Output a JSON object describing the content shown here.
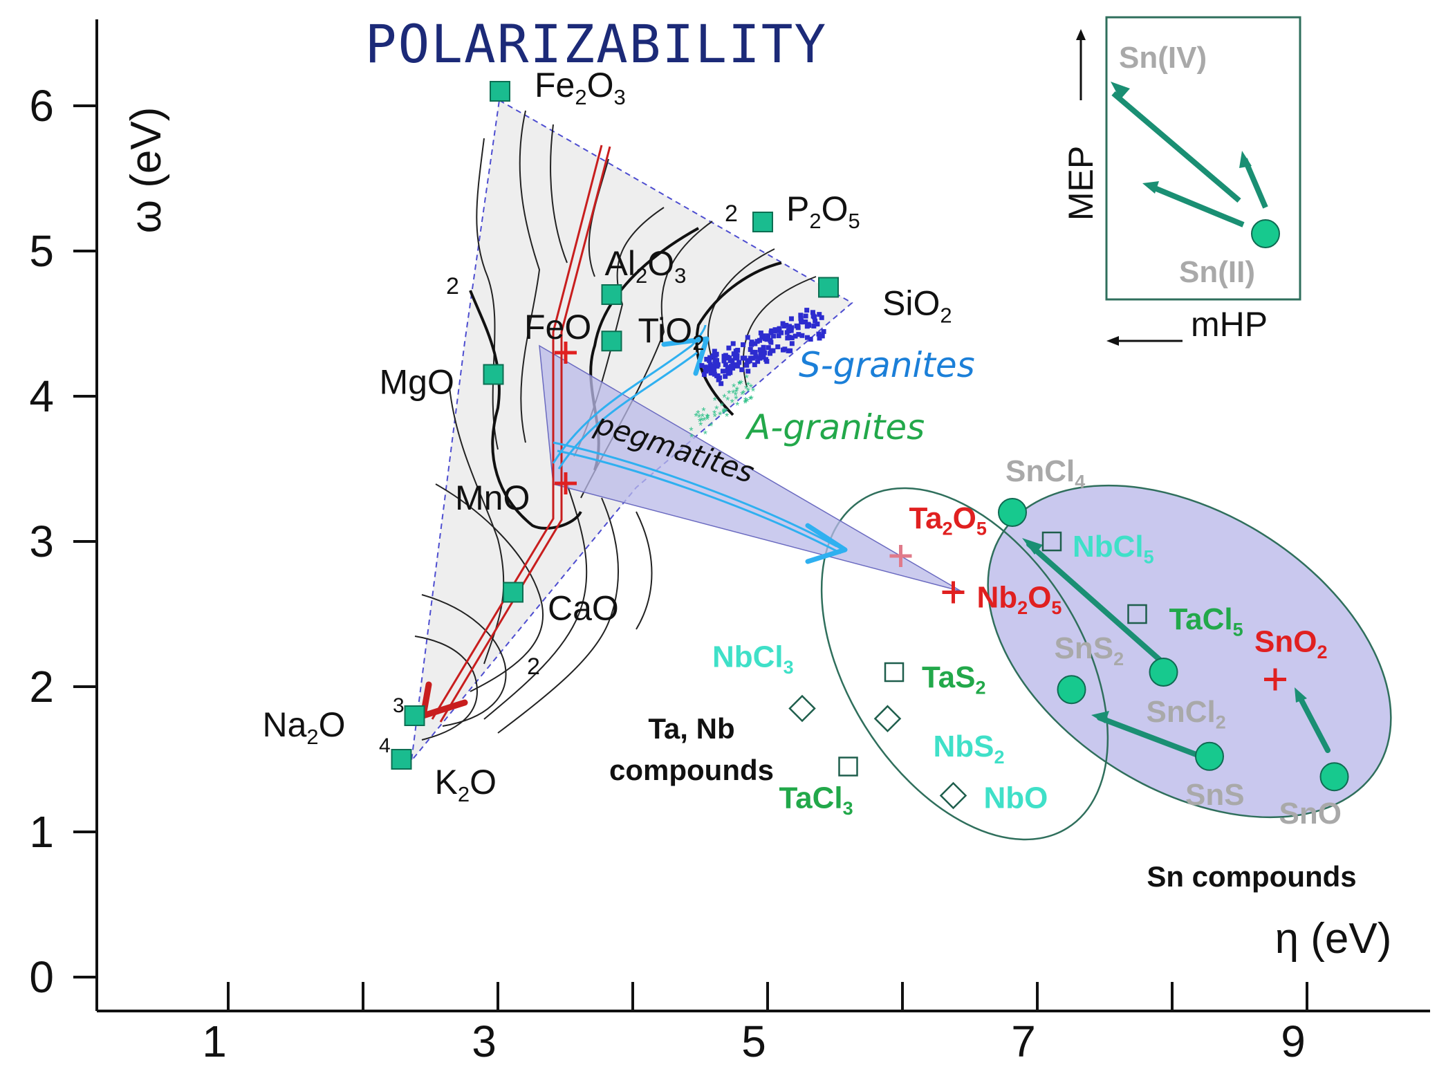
{
  "chart_data": {
    "type": "scatter",
    "title": "POLARIZABILITY",
    "xlabel": "η (eV)",
    "ylabel": "ω (eV)",
    "xlim": [
      0,
      10.3
    ],
    "ylim": [
      0,
      6.6
    ],
    "xticks": [
      1,
      3,
      5,
      7,
      9
    ],
    "yticks": [
      0,
      1,
      2,
      3,
      4,
      5,
      6
    ],
    "oxides": [
      {
        "label": "Fe",
        "sub": "2",
        "label2": "O",
        "sub2": "3",
        "x": 3.1,
        "y": 6.1
      },
      {
        "label": "P",
        "sub": "2",
        "label2": "O",
        "sub2": "5",
        "x": 5.1,
        "y": 5.2
      },
      {
        "label": "Al",
        "sub": "2",
        "label2": "O",
        "sub2": "3",
        "x": 3.95,
        "y": 4.7
      },
      {
        "label": "SiO",
        "sub": "2",
        "label2": "",
        "sub2": "",
        "x": 5.6,
        "y": 4.75
      },
      {
        "label": "TiO",
        "sub": "2",
        "label2": "",
        "sub2": "",
        "x": 3.95,
        "y": 4.38
      },
      {
        "label": "FeO",
        "sub": "",
        "label2": "",
        "sub2": "",
        "x": 3.6,
        "y": 4.3
      },
      {
        "label": "MgO",
        "sub": "",
        "label2": "",
        "sub2": "",
        "x": 3.05,
        "y": 4.15
      },
      {
        "label": "MnO",
        "sub": "",
        "label2": "",
        "sub2": "",
        "x": 3.6,
        "y": 3.4
      },
      {
        "label": "CaO",
        "sub": "",
        "label2": "",
        "sub2": "",
        "x": 3.2,
        "y": 2.65
      },
      {
        "label": "Na",
        "sub": "2",
        "label2": "O",
        "sub2": "",
        "x": 2.45,
        "y": 1.8
      },
      {
        "label": "K",
        "sub": "2",
        "label2": "O",
        "sub2": "",
        "x": 2.35,
        "y": 1.5
      }
    ],
    "contour_labels": [
      "2",
      "2",
      "2",
      "3",
      "4"
    ],
    "granite_labels": {
      "s": "S-granites",
      "a": "A-granites",
      "pegmatites": "pegmatites"
    },
    "tanb_group": {
      "label_line1": "Ta, Nb",
      "label_line2": "compounds",
      "red_points": [
        {
          "label": "Ta",
          "sub": "2",
          "label2": "O",
          "sub2": "5",
          "x": 6.15,
          "y": 2.9
        },
        {
          "label": "Nb",
          "sub": "2",
          "label2": "O",
          "sub2": "5",
          "x": 6.55,
          "y": 2.65
        }
      ],
      "squares": [
        {
          "label": "NbCl",
          "sub": "5",
          "x": 7.3,
          "y": 3.0
        },
        {
          "label": "TaCl",
          "sub": "5",
          "x": 7.95,
          "y": 2.5
        },
        {
          "label": "TaS",
          "sub": "2",
          "x": 6.1,
          "y": 2.1
        },
        {
          "label": "TaCl",
          "sub": "3",
          "x": 5.75,
          "y": 1.45
        }
      ],
      "diamonds": [
        {
          "label": "NbCl",
          "sub": "3",
          "x": 5.4,
          "y": 1.85
        },
        {
          "label": "NbS",
          "sub": "2",
          "x": 6.05,
          "y": 1.78
        },
        {
          "label": "NbO",
          "sub": "",
          "x": 6.55,
          "y": 1.25
        }
      ]
    },
    "sn_group": {
      "label": "Sn compounds",
      "circles": [
        {
          "label": "SnCl",
          "sub": "4",
          "x": 7.0,
          "y": 3.2
        },
        {
          "label": "SnS",
          "sub": "2",
          "x": 7.45,
          "y": 1.98
        },
        {
          "label": "SnCl",
          "sub": "2",
          "x": 8.15,
          "y": 2.1
        },
        {
          "label": "SnS",
          "sub": "",
          "x": 8.5,
          "y": 1.52
        },
        {
          "label": "SnO",
          "sub": "",
          "x": 9.45,
          "y": 1.38
        }
      ],
      "red_point": {
        "label": "SnO",
        "sub": "2",
        "x": 9.0,
        "y": 2.05
      }
    },
    "inset": {
      "y_label": "MEP",
      "x_label": "mHP",
      "top_label": "Sn(IV)",
      "bottom_label": "Sn(II)"
    }
  },
  "colors": {
    "oxide_marker": "#1abc8f",
    "sn_marker": "#17c98e",
    "red": "#e02020",
    "blue_text": "#1b7fd8",
    "green_text": "#22a84a",
    "cyan_text": "#3fe0c8",
    "gray_text": "#a9a9a9",
    "title": "#1c2a78",
    "s_granite_cloud": "#2d2ccf",
    "a_granite_cloud": "#33c28b",
    "ellipse_fill": "#c9c8ee",
    "cone_fill": "#b9b9e8"
  }
}
